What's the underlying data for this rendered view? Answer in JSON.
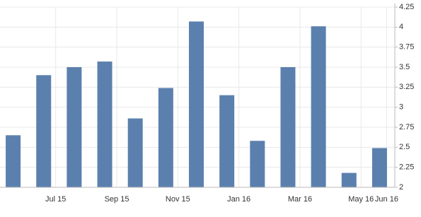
{
  "chart_data": {
    "type": "bar",
    "categories": [
      null,
      "Jul 15",
      null,
      "Sep 15",
      null,
      "Nov 15",
      null,
      "Jan 16",
      null,
      "Mar 16",
      null,
      "May 16",
      "Jun 16"
    ],
    "values": [
      2.65,
      3.4,
      3.5,
      3.57,
      2.86,
      3.24,
      4.07,
      3.15,
      2.58,
      3.5,
      4.01,
      2.18,
      2.49
    ],
    "color": "#5b80ae",
    "ylim": [
      2,
      4.25
    ],
    "yticks": [
      2,
      2.25,
      2.5,
      2.75,
      3,
      3.25,
      3.5,
      3.75,
      4,
      4.25
    ],
    "grid": true
  }
}
